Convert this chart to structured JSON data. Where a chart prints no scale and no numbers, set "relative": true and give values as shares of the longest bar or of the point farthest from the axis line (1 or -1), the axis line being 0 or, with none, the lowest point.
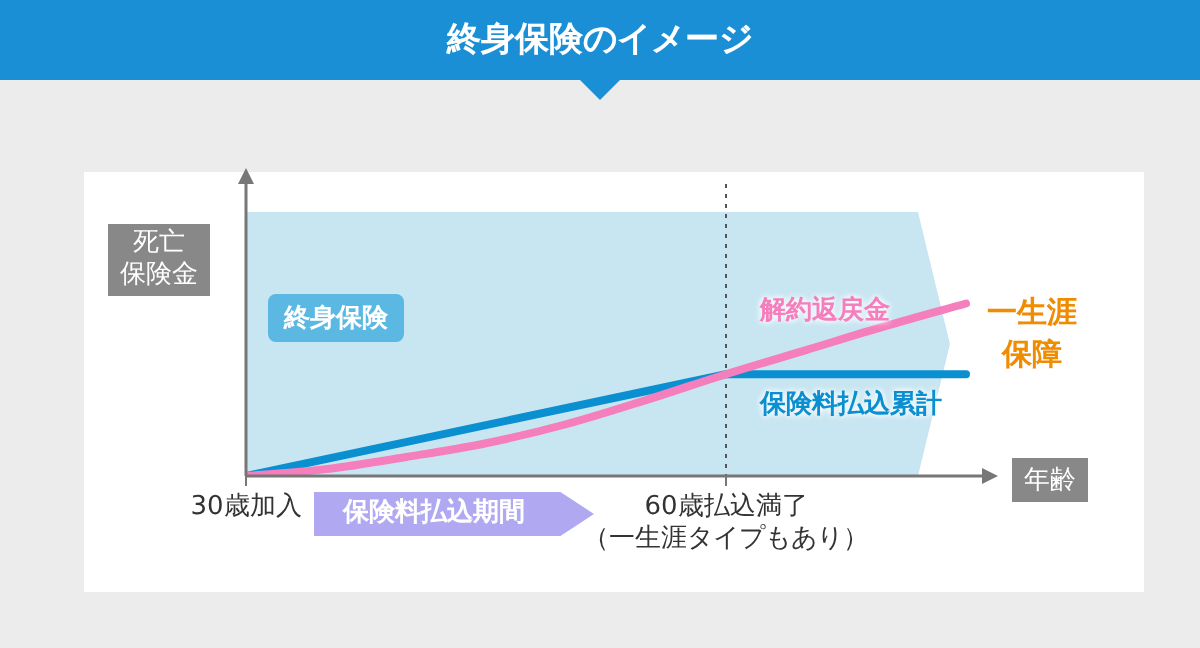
{
  "chart_data": {
    "type": "line",
    "title": "終身保険のイメージ",
    "xlabel": "年齢",
    "ylabel": "死亡保険金",
    "relative": true,
    "marker": "none",
    "line_style": "solid",
    "xlim": [
      30,
      76
    ],
    "xticks": [
      {
        "value": 30,
        "label": "30歳加入"
      },
      {
        "value": 60,
        "label": "60歳払込満了（一生涯タイプもあり）"
      }
    ],
    "series": [
      {
        "name": "保険料払込累計",
        "color": "#0a8fd0",
        "x": [
          30,
          60,
          75
        ],
        "values": [
          0,
          0.59,
          0.59
        ]
      },
      {
        "name": "解約返戻金",
        "color": "#f57ebd",
        "x": [
          30,
          35,
          40,
          45,
          50,
          55,
          60,
          65,
          70,
          75
        ],
        "values": [
          0,
          0.04,
          0.11,
          0.19,
          0.3,
          0.44,
          0.59,
          0.73,
          0.87,
          1
        ]
      }
    ],
    "ref_lines": [
      {
        "axis": "x",
        "value": 60,
        "label": null,
        "color": "#555555",
        "line_style": "dotted"
      }
    ],
    "bands": [
      {
        "axis": "x",
        "from": 30,
        "to": 74,
        "label": "終身保険",
        "color": "#c8e6f2"
      }
    ],
    "annotations": [
      "保険料払込期間",
      "一生涯保障"
    ]
  }
}
